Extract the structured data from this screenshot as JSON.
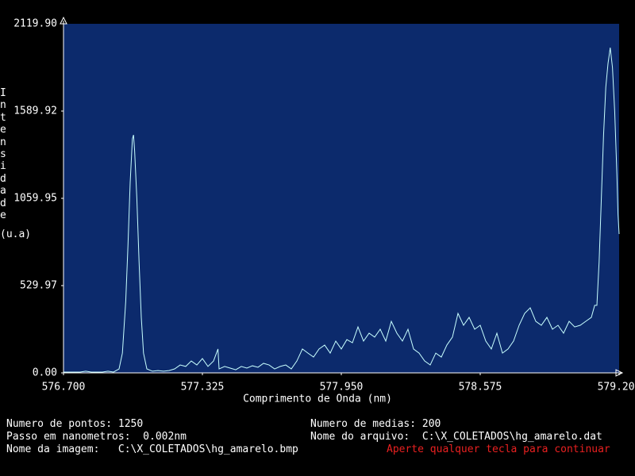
{
  "chart_data": {
    "type": "line",
    "xlabel": "Comprimento de Onda (nm)",
    "ylabel": "Intensidade",
    "yunit": "(u.a)",
    "color": "#c8ffff",
    "background": "#0c2a6c",
    "xlim": [
      576.7,
      579.2
    ],
    "xticks": [
      {
        "value": 576.7,
        "label": "576.700"
      },
      {
        "value": 577.325,
        "label": "577.325"
      },
      {
        "value": 577.95,
        "label": "577.950"
      },
      {
        "value": 578.575,
        "label": "578.575"
      },
      {
        "value": 579.2,
        "label": "579.200"
      }
    ],
    "ylim": [
      0,
      2119.9
    ],
    "yticks": [
      {
        "value": 0,
        "label": "0.00"
      },
      {
        "value": 529.97,
        "label": "529.97"
      },
      {
        "value": 1059.95,
        "label": "1059.95"
      },
      {
        "value": 1589.92,
        "label": "1589.92"
      },
      {
        "value": 2119.9,
        "label": "2119.90"
      }
    ],
    "x": [
      576.7,
      576.725,
      576.75,
      576.775,
      576.8,
      576.825,
      576.85,
      576.875,
      576.9,
      576.925,
      576.95,
      576.965,
      576.98,
      576.99,
      577.0,
      577.01,
      577.015,
      577.02,
      577.03,
      577.04,
      577.05,
      577.06,
      577.075,
      577.1,
      577.125,
      577.15,
      577.175,
      577.2,
      577.225,
      577.25,
      577.275,
      577.3,
      577.325,
      577.35,
      577.375,
      577.395,
      577.4,
      577.425,
      577.45,
      577.475,
      577.5,
      577.525,
      577.55,
      577.575,
      577.6,
      577.625,
      577.65,
      577.675,
      577.7,
      577.725,
      577.75,
      577.775,
      577.8,
      577.825,
      577.85,
      577.875,
      577.9,
      577.925,
      577.95,
      577.975,
      578.0,
      578.025,
      578.05,
      578.075,
      578.1,
      578.125,
      578.15,
      578.175,
      578.2,
      578.225,
      578.25,
      578.275,
      578.3,
      578.325,
      578.35,
      578.375,
      578.4,
      578.425,
      578.45,
      578.475,
      578.5,
      578.525,
      578.55,
      578.575,
      578.6,
      578.625,
      578.65,
      578.675,
      578.7,
      578.725,
      578.75,
      578.775,
      578.8,
      578.825,
      578.85,
      578.875,
      578.9,
      578.925,
      578.95,
      578.975,
      579.0,
      579.025,
      579.05,
      579.075,
      579.09,
      579.1,
      579.11,
      579.12,
      579.13,
      579.14,
      579.15,
      579.16,
      579.17,
      579.18,
      579.19,
      579.195,
      579.2
    ],
    "values": [
      5,
      5,
      5,
      5,
      10,
      5,
      5,
      5,
      10,
      5,
      24,
      120,
      434,
      771,
      1156,
      1421,
      1445,
      1349,
      1060,
      675,
      337,
      120,
      24,
      10,
      14,
      10,
      14,
      24,
      48,
      39,
      72,
      48,
      87,
      39,
      72,
      145,
      24,
      39,
      29,
      19,
      39,
      29,
      43,
      34,
      58,
      48,
      24,
      39,
      48,
      24,
      72,
      145,
      120,
      96,
      145,
      169,
      120,
      193,
      145,
      202,
      183,
      279,
      193,
      241,
      217,
      265,
      193,
      313,
      241,
      193,
      265,
      145,
      120,
      72,
      48,
      120,
      96,
      169,
      217,
      361,
      289,
      337,
      265,
      289,
      193,
      145,
      241,
      120,
      145,
      193,
      289,
      361,
      395,
      313,
      289,
      337,
      265,
      289,
      241,
      313,
      279,
      289,
      313,
      337,
      410,
      410,
      675,
      1060,
      1445,
      1734,
      1879,
      1975,
      1855,
      1590,
      1205,
      964,
      843
    ]
  },
  "info": {
    "points": "Numero de pontos: 1250",
    "step": "Passo em nanometros:  0.002nm",
    "image": "Nome da imagem:   C:\\X_COLETADOS\\hg_amarelo.bmp",
    "averages": "Numero de medias: 200",
    "file": "Nome do arquivo:  C:\\X_COLETADOS\\hg_amarelo.dat",
    "prompt": "Aperte qualquer tecla para continuar"
  }
}
